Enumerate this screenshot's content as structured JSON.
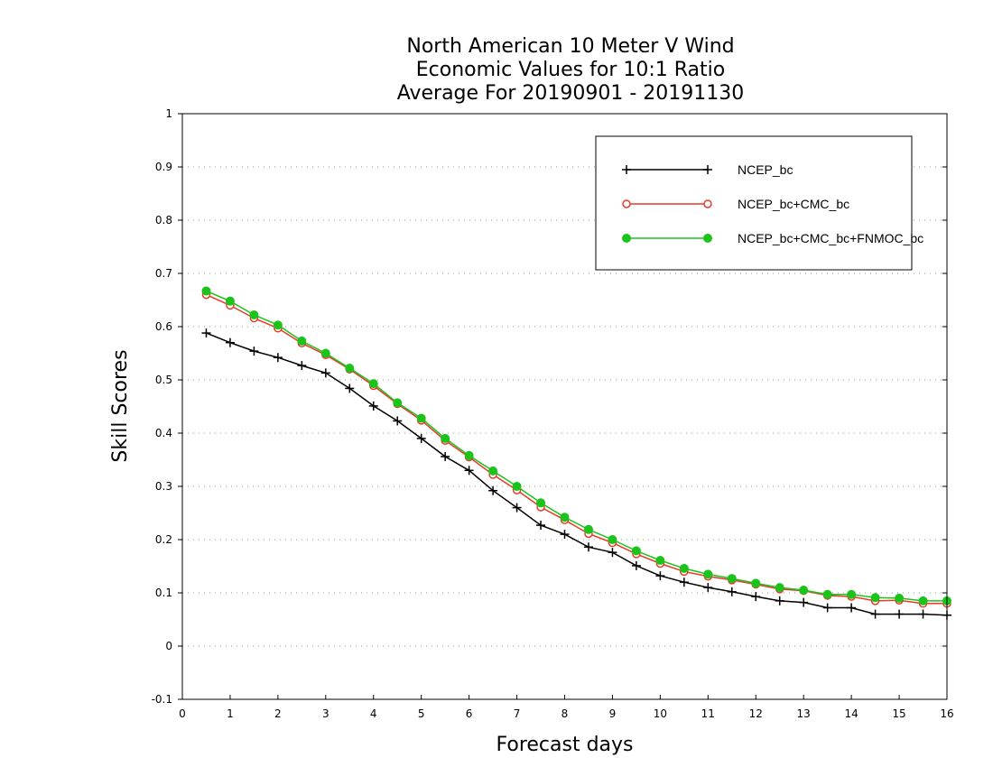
{
  "chart_data": {
    "type": "line",
    "title_lines": [
      "North American 10 Meter V Wind",
      "Economic Values for 10:1 Ratio",
      "Average For 20190901 - 20191130"
    ],
    "xlabel": "Forecast days",
    "ylabel": "Skill Scores",
    "xlim": [
      0,
      16
    ],
    "ylim": [
      -0.1,
      1
    ],
    "xticks": [
      "0",
      "1",
      "2",
      "3",
      "4",
      "5",
      "6",
      "7",
      "8",
      "9",
      "10",
      "11",
      "12",
      "13",
      "14",
      "15",
      "16"
    ],
    "yticks": [
      "-0.1",
      "0",
      "0.1",
      "0.2",
      "0.3",
      "0.4",
      "0.5",
      "0.6",
      "0.7",
      "0.8",
      "0.9",
      "1"
    ],
    "grid": "horizontal dotted",
    "legend_position": "top-right",
    "x": [
      0.5,
      1,
      1.5,
      2,
      2.5,
      3,
      3.5,
      4,
      4.5,
      5,
      5.5,
      6,
      6.5,
      7,
      7.5,
      8,
      8.5,
      9,
      9.5,
      10,
      10.5,
      11,
      11.5,
      12,
      12.5,
      13,
      13.5,
      14,
      14.5,
      15,
      15.5,
      16
    ],
    "series": [
      {
        "name": "NCEP_bc",
        "color": "#000000",
        "marker": "plus",
        "values": [
          0.588,
          0.57,
          0.554,
          0.542,
          0.527,
          0.513,
          0.484,
          0.451,
          0.423,
          0.39,
          0.356,
          0.33,
          0.292,
          0.26,
          0.227,
          0.21,
          0.186,
          0.176,
          0.151,
          0.132,
          0.12,
          0.11,
          0.102,
          0.093,
          0.085,
          0.082,
          0.072,
          0.072,
          0.06,
          0.06,
          0.06,
          0.058
        ]
      },
      {
        "name": "NCEP_bc+CMC_bc",
        "color": "#e8392b",
        "marker": "open-circle",
        "values": [
          0.66,
          0.64,
          0.616,
          0.597,
          0.569,
          0.547,
          0.52,
          0.489,
          0.455,
          0.424,
          0.386,
          0.355,
          0.322,
          0.293,
          0.261,
          0.237,
          0.211,
          0.194,
          0.173,
          0.155,
          0.14,
          0.131,
          0.124,
          0.116,
          0.107,
          0.104,
          0.095,
          0.093,
          0.085,
          0.086,
          0.08,
          0.08
        ]
      },
      {
        "name": "NCEP_bc+CMC_bc+FNMOC_bc",
        "color": "#1bc41b",
        "marker": "filled-circle",
        "values": [
          0.667,
          0.648,
          0.622,
          0.603,
          0.573,
          0.55,
          0.522,
          0.493,
          0.457,
          0.428,
          0.39,
          0.358,
          0.329,
          0.3,
          0.269,
          0.242,
          0.219,
          0.2,
          0.179,
          0.161,
          0.146,
          0.135,
          0.127,
          0.118,
          0.11,
          0.105,
          0.097,
          0.097,
          0.091,
          0.09,
          0.085,
          0.085
        ]
      }
    ]
  }
}
